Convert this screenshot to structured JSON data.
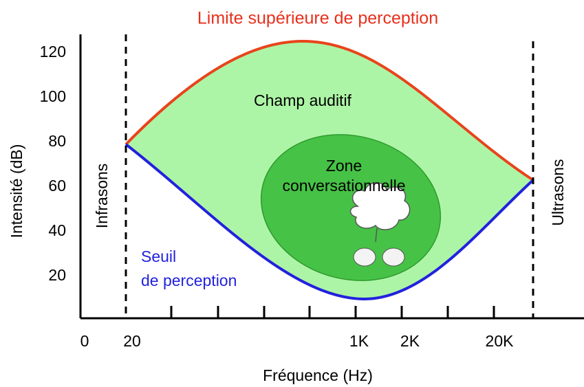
{
  "title": "Limite supérieure de perception",
  "y_axis": {
    "label": "Intensité (dB)",
    "ticks": [
      120,
      100,
      80,
      60,
      40,
      20
    ]
  },
  "x_axis": {
    "label": "Fréquence (Hz)",
    "ticks": [
      "0",
      "20",
      "1K",
      "2K",
      "20K"
    ]
  },
  "regions": {
    "field": "Champ auditif",
    "zone": [
      "Zone",
      "conversationnelle"
    ]
  },
  "side_labels": {
    "left": "Infrasons",
    "right": "Ultrasons"
  },
  "threshold": [
    "Seuil",
    "de perception"
  ]
}
